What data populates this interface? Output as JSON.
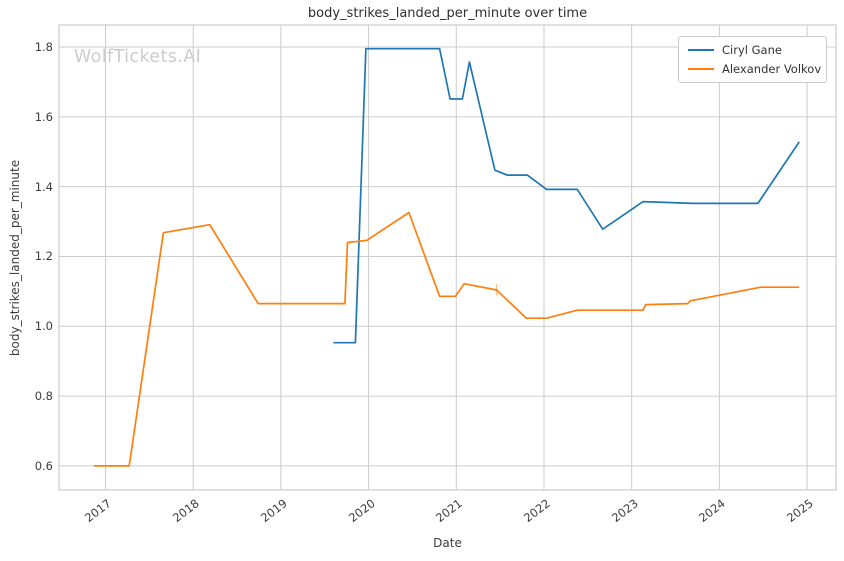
{
  "title": "body_strikes_landed_per_minute over time",
  "watermark": "WolfTickets.AI",
  "axes": {
    "x_label": "Date",
    "y_label": "body_strikes_landed_per_minute"
  },
  "legend": {
    "items": [
      {
        "label": "Ciryl Gane",
        "color": "#1f77b4"
      },
      {
        "label": "Alexander Volkov",
        "color": "#ff7f0e"
      }
    ]
  },
  "colors": {
    "blue": "#1f77b4",
    "orange": "#ff7f0e",
    "grid": "#cccccc",
    "tick_text": "#3d3d3d",
    "watermark": "#cccccc",
    "marker_tick": "#ffbb78"
  },
  "chart_data": {
    "type": "line",
    "title": "body_strikes_landed_per_minute over time",
    "xlabel": "Date",
    "ylabel": "body_strikes_landed_per_minute",
    "grid": true,
    "legend_position": "upper right",
    "grid_color": "#cccccc",
    "x_ticks": [
      2017,
      2018,
      2019,
      2020,
      2021,
      2022,
      2023,
      2024,
      2025
    ],
    "y_ticks": [
      0.6,
      0.8,
      1.0,
      1.2,
      1.4,
      1.6,
      1.8
    ],
    "x_domain": [
      2016.47,
      2025.33
    ],
    "y_domain": [
      0.531,
      1.863
    ],
    "series": [
      {
        "name": "Ciryl Gane",
        "color": "#1f77b4",
        "points": [
          [
            2019.6,
            0.953
          ],
          [
            2019.85,
            0.953
          ],
          [
            2019.97,
            1.795
          ],
          [
            2020.81,
            1.795
          ],
          [
            2020.93,
            1.651
          ],
          [
            2021.07,
            1.651
          ],
          [
            2021.15,
            1.757
          ],
          [
            2021.44,
            1.447
          ],
          [
            2021.58,
            1.433
          ],
          [
            2021.81,
            1.433
          ],
          [
            2022.03,
            1.392
          ],
          [
            2022.38,
            1.392
          ],
          [
            2022.67,
            1.278
          ],
          [
            2023.13,
            1.357
          ],
          [
            2023.7,
            1.352
          ],
          [
            2024.44,
            1.352
          ],
          [
            2024.91,
            1.528
          ]
        ]
      },
      {
        "name": "Alexander Volkov",
        "color": "#ff7f0e",
        "points": [
          [
            2016.87,
            0.6
          ],
          [
            2017.27,
            0.6
          ],
          [
            2017.66,
            1.268
          ],
          [
            2018.19,
            1.291
          ],
          [
            2018.74,
            1.065
          ],
          [
            2019.73,
            1.065
          ],
          [
            2019.76,
            1.24
          ],
          [
            2019.98,
            1.246
          ],
          [
            2020.46,
            1.326
          ],
          [
            2020.81,
            1.086
          ],
          [
            2020.99,
            1.086
          ],
          [
            2021.09,
            1.122
          ],
          [
            2021.46,
            1.104
          ],
          [
            2021.8,
            1.023
          ],
          [
            2022.03,
            1.023
          ],
          [
            2022.38,
            1.046
          ],
          [
            2023.13,
            1.046
          ],
          [
            2023.16,
            1.062
          ],
          [
            2023.64,
            1.065
          ],
          [
            2023.67,
            1.073
          ],
          [
            2024.47,
            1.112
          ],
          [
            2024.91,
            1.112
          ]
        ]
      }
    ],
    "annotation_marker": {
      "x": 2021.46,
      "y": 1.104
    }
  }
}
